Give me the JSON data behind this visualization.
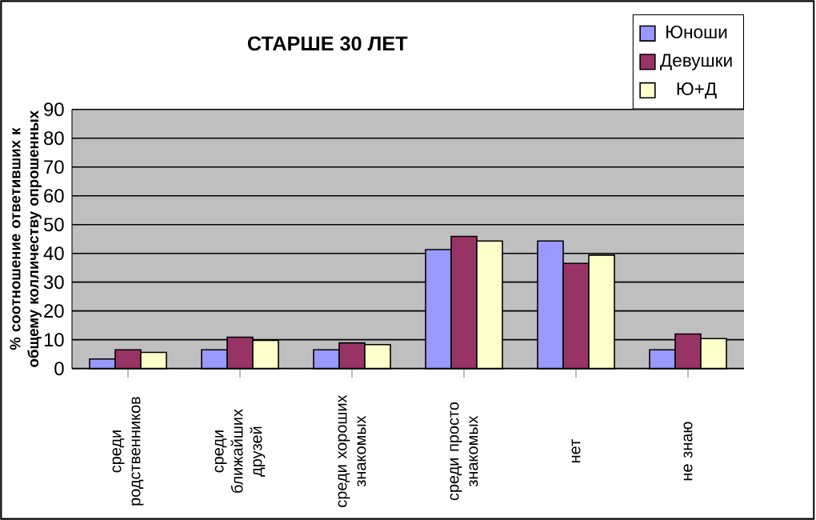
{
  "chart_data": {
    "type": "bar",
    "title": "СТАРШЕ 30 ЛЕТ",
    "ylabel": "% соотношение ответивших к общему колличеству опрошенных",
    "categories": [
      "среди родственников",
      "среди ближайших друзей",
      "среди хороших знакомых",
      "среди просто знакомых",
      "нет",
      "не знаю"
    ],
    "series": [
      {
        "name": "Юноши",
        "color": "#9999ff",
        "values": [
          3.3,
          6.5,
          6.5,
          41.3,
          44.3,
          6.5
        ]
      },
      {
        "name": "Девушки",
        "color": "#993366",
        "values": [
          6.5,
          10.9,
          8.9,
          45.9,
          36.5,
          12.0
        ]
      },
      {
        "name": "Ю+Д",
        "color": "#ffffcc",
        "values": [
          5.6,
          9.8,
          8.3,
          44.3,
          39.4,
          10.4
        ]
      }
    ],
    "ylim": [
      0,
      90
    ],
    "yticks": [
      0,
      10,
      20,
      30,
      40,
      50,
      60,
      70,
      80,
      90
    ],
    "grid": "y",
    "legend": "top right"
  }
}
